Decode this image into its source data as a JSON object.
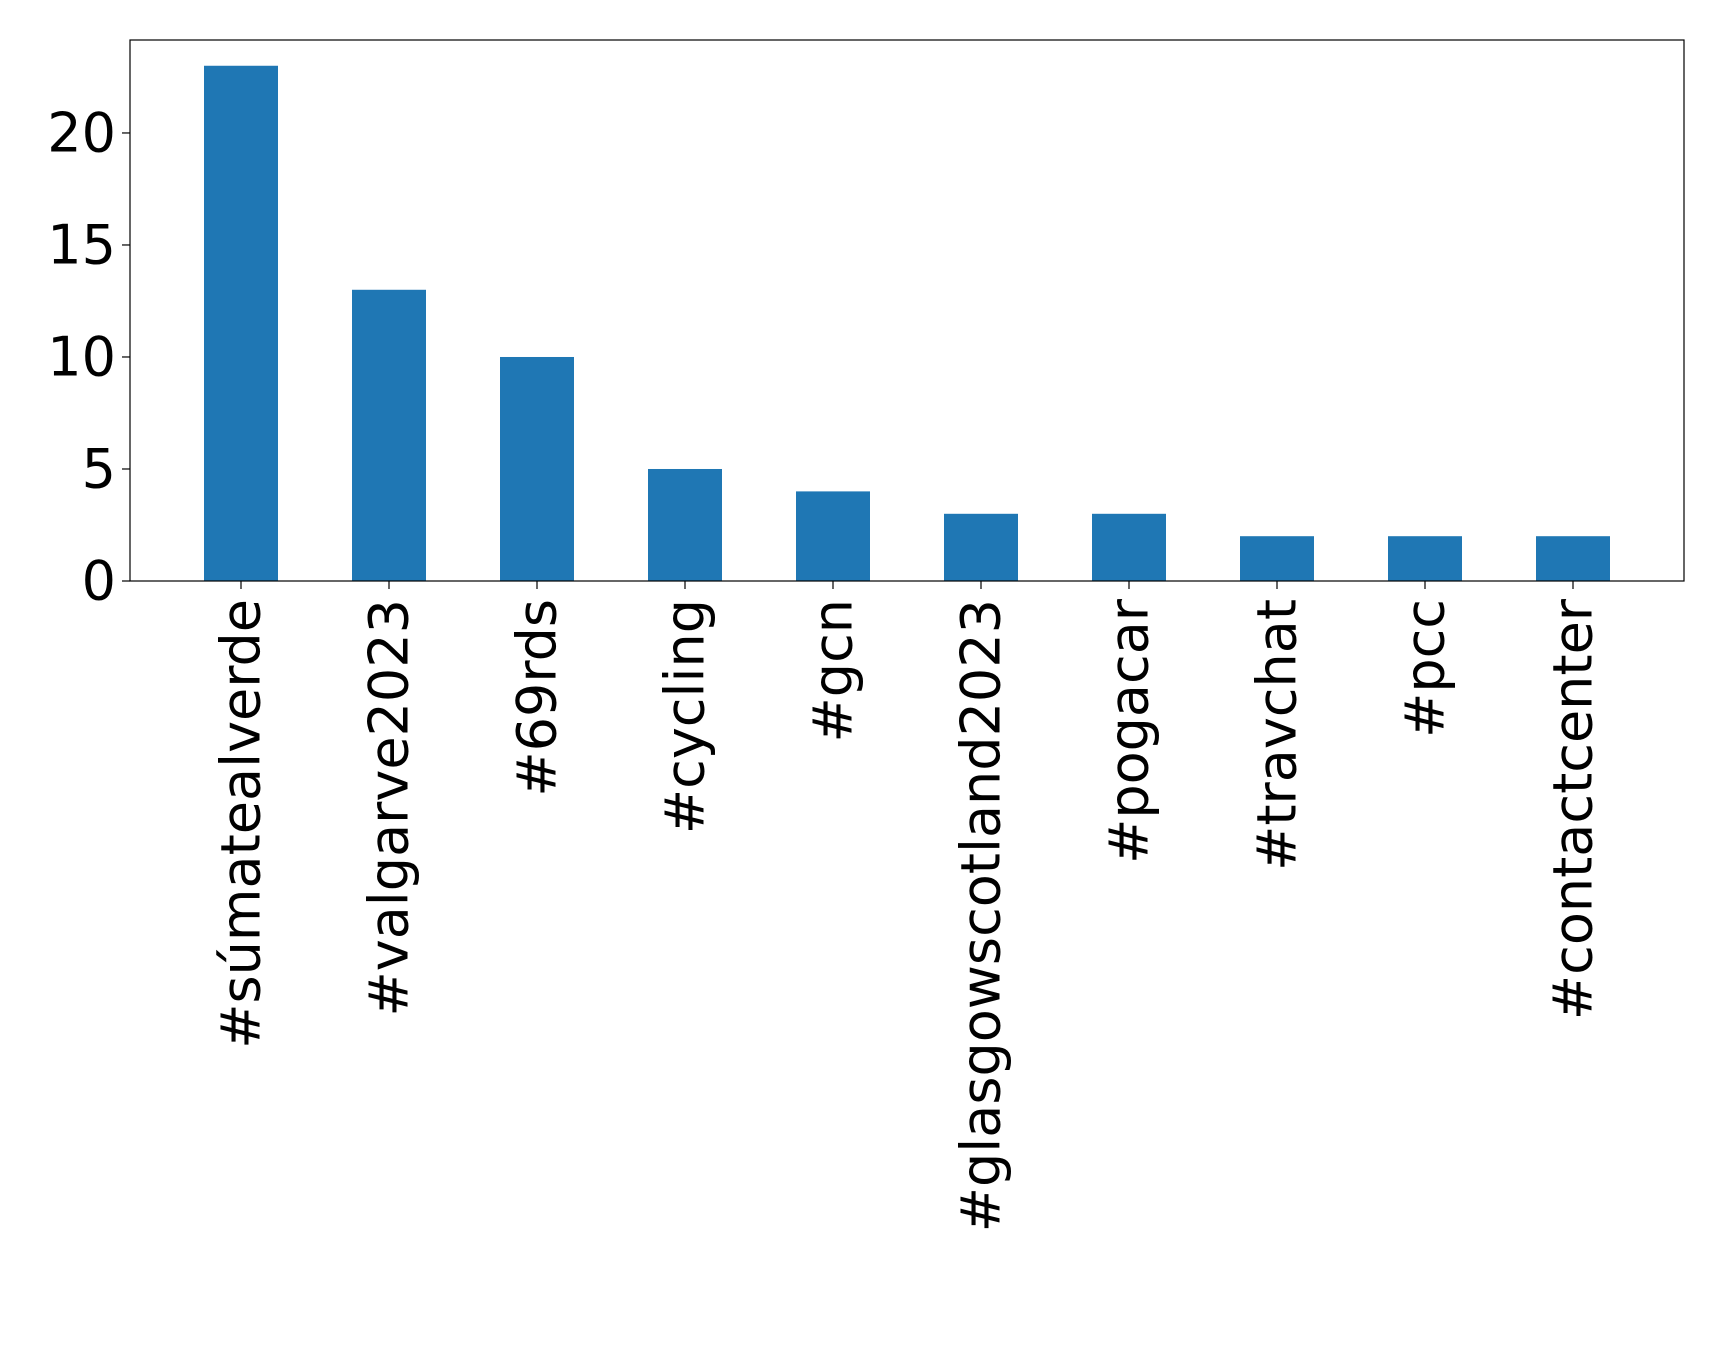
{
  "chart_data": {
    "type": "bar",
    "categories": [
      "#súmatealverde",
      "#valgarve2023",
      "#69rds",
      "#cycling",
      "#gcn",
      "#glasgowscotland2023",
      "#pogacar",
      "#travchat",
      "#pcc",
      "#contactcenter"
    ],
    "values": [
      23,
      13,
      10,
      5,
      4,
      3,
      3,
      2,
      2,
      2
    ],
    "title": "",
    "xlabel": "",
    "ylabel": "",
    "ylim": [
      0,
      24.15
    ],
    "yticks": [
      "0",
      "5",
      "10",
      "15",
      "20"
    ],
    "bar_color": "#1f77b4",
    "grid": false,
    "legend": "none"
  }
}
